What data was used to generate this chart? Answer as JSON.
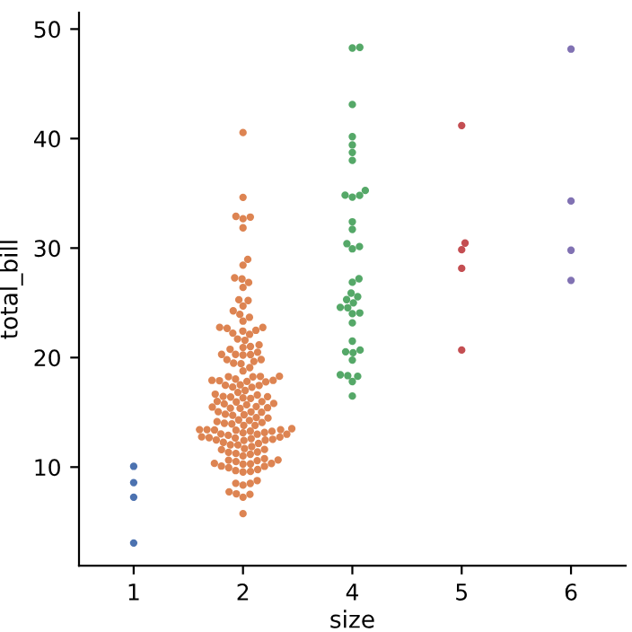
{
  "chart_data": {
    "type": "scatter",
    "xlabel": "size",
    "ylabel": "total_bill",
    "categories": [
      "1",
      "2",
      "4",
      "5",
      "6"
    ],
    "ylim": [
      1,
      51.5
    ],
    "yticks": [
      10,
      20,
      30,
      40,
      50
    ],
    "marker": "circle",
    "grid": false,
    "series": [
      {
        "color": "#4c72b0",
        "x": [
          "1",
          "1",
          "1",
          "1"
        ],
        "values": [
          3.07,
          10.07,
          7.25,
          8.58
        ]
      },
      {
        "color": "#dd8452",
        "x": [
          "2",
          "2",
          "2",
          "2",
          "2",
          "2",
          "2",
          "2",
          "2",
          "2",
          "2",
          "2",
          "2",
          "2",
          "2",
          "2",
          "2",
          "2",
          "2",
          "2",
          "2",
          "2",
          "2",
          "2",
          "2",
          "2",
          "2",
          "2",
          "2",
          "2",
          "2",
          "2",
          "2",
          "2",
          "2",
          "2",
          "2",
          "2",
          "2",
          "2",
          "2",
          "2",
          "2",
          "2",
          "2",
          "2",
          "2",
          "2",
          "2",
          "2",
          "2",
          "2",
          "2",
          "2",
          "2",
          "2",
          "2",
          "2",
          "2",
          "2",
          "2",
          "2",
          "2",
          "2",
          "2",
          "2",
          "2",
          "2",
          "2",
          "2",
          "2",
          "2",
          "2",
          "2",
          "2",
          "2",
          "2",
          "2",
          "2",
          "2",
          "2",
          "2",
          "2",
          "2",
          "2",
          "2",
          "2",
          "2",
          "2",
          "2",
          "2",
          "2",
          "2",
          "2",
          "2",
          "2",
          "2",
          "2",
          "2",
          "2",
          "2",
          "2",
          "2",
          "2",
          "2",
          "2",
          "2",
          "2",
          "2",
          "2",
          "2",
          "2",
          "2",
          "2",
          "2",
          "2",
          "2",
          "2",
          "2",
          "2",
          "2",
          "2",
          "2",
          "2",
          "2",
          "2",
          "2",
          "2",
          "2",
          "2",
          "2",
          "2",
          "2",
          "2",
          "2",
          "2",
          "2",
          "2",
          "2",
          "2",
          "2",
          "2",
          "2",
          "2",
          "2",
          "2",
          "2",
          "2",
          "2",
          "2",
          "2",
          "2",
          "2",
          "2",
          "2",
          "2"
        ],
        "values": [
          16.99,
          23.68,
          8.77,
          15.04,
          14.78,
          10.27,
          15.42,
          14.83,
          21.58,
          17.92,
          20.29,
          15.77,
          19.82,
          13.37,
          12.69,
          21.7,
          19.65,
          9.55,
          15.06,
          17.78,
          17.46,
          13.94,
          9.68,
          18.29,
          22.23,
          18.04,
          12.54,
          10.29,
          9.94,
          19.49,
          26.41,
          11.24,
          20.29,
          13.81,
          11.02,
          16.45,
          20.23,
          15.01,
          12.02,
          26.86,
          25.28,
          14.73,
          10.51,
          17.92,
          22.76,
          17.29,
          19.44,
          16.66,
          32.68,
          15.98,
          13.03,
          18.28,
          24.71,
          21.16,
          28.97,
          22.49,
          5.75,
          16.32,
          22.75,
          27.28,
          12.03,
          21.01,
          12.46,
          11.35,
          15.38,
          22.42,
          20.92,
          15.36,
          20.49,
          25.21,
          18.24,
          14.31,
          14.0,
          23.95,
          17.31,
          10.65,
          12.43,
          11.69,
          13.42,
          14.26,
          15.95,
          12.48,
          8.52,
          14.52,
          11.38,
          19.08,
          20.27,
          11.17,
          12.26,
          18.26,
          8.51,
          10.33,
          14.15,
          16.0,
          13.16,
          17.47,
          16.43,
          8.35,
          11.87,
          9.78,
          7.51,
          14.07,
          13.13,
          13.39,
          12.66,
          13.81,
          17.51,
          20.76,
          10.59,
          10.63,
          15.81,
          7.25,
          31.85,
          16.82,
          32.9,
          17.89,
          14.48,
          9.6,
          34.63,
          23.33,
          40.55,
          15.69,
          19.81,
          28.44,
          15.48,
          16.58,
          7.56,
          10.34,
          13.0,
          13.51,
          12.74,
          13.0,
          16.4,
          24.27,
          12.76,
          13.27,
          12.9,
          11.59,
          7.74,
          12.16,
          13.42,
          13.42,
          16.27,
          10.09,
          13.28,
          22.12,
          11.61,
          10.77,
          15.53,
          10.07,
          12.6,
          32.83,
          27.18,
          22.67,
          17.82,
          18.78
        ]
      },
      {
        "color": "#55a868",
        "x": [
          "4",
          "4",
          "4",
          "4",
          "4",
          "4",
          "4",
          "4",
          "4",
          "4",
          "4",
          "4",
          "4",
          "4",
          "4",
          "4",
          "4",
          "4",
          "4",
          "4",
          "4",
          "4",
          "4",
          "4",
          "4",
          "4",
          "4",
          "4",
          "4",
          "4",
          "4",
          "4",
          "4",
          "4",
          "4",
          "4",
          "4"
        ],
        "values": [
          24.59,
          25.29,
          26.88,
          35.26,
          18.43,
          39.42,
          17.81,
          18.35,
          20.69,
          30.4,
          32.4,
          34.81,
          25.56,
          38.01,
          48.27,
          18.29,
          27.2,
          34.83,
          40.17,
          29.93,
          24.08,
          24.55,
          19.77,
          25.0,
          16.49,
          21.5,
          31.71,
          34.65,
          23.17,
          43.11,
          20.53,
          38.73,
          25.89,
          48.33,
          30.14,
          20.45,
          24.01
        ]
      },
      {
        "color": "#c44e52",
        "x": [
          "5",
          "5",
          "5",
          "5",
          "5"
        ],
        "values": [
          41.19,
          29.85,
          20.69,
          30.46,
          28.15
        ]
      },
      {
        "color": "#8172b3",
        "x": [
          "6",
          "6",
          "6",
          "6"
        ],
        "values": [
          29.8,
          34.3,
          27.05,
          48.17
        ]
      }
    ]
  }
}
